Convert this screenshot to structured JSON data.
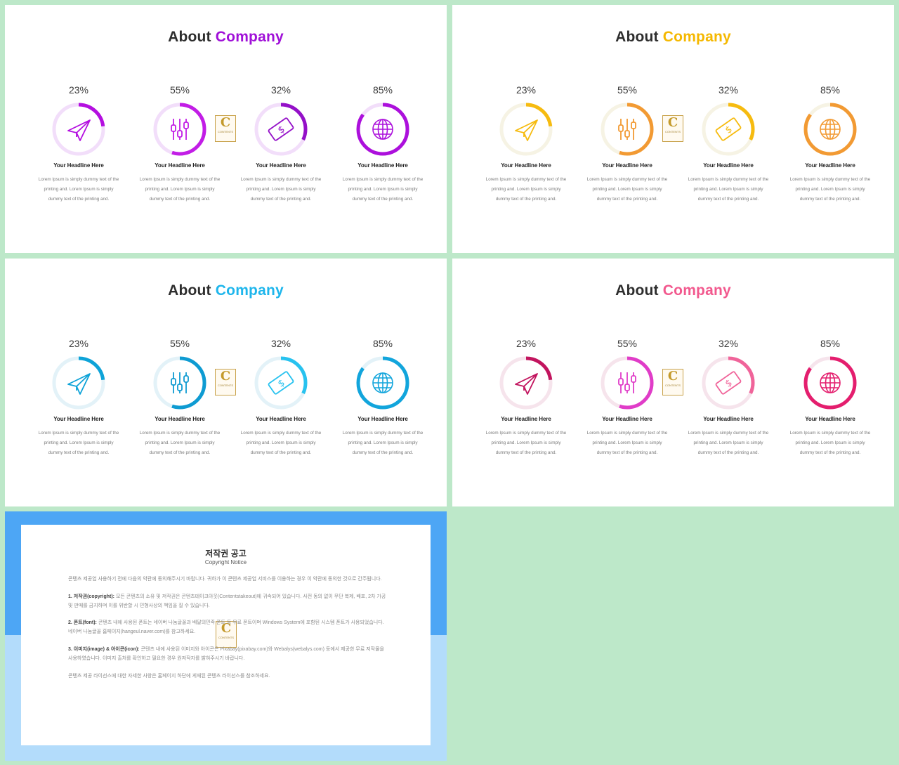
{
  "slides": [
    {
      "title_a": "About",
      "title_b": "Company",
      "accent": "#a010d8",
      "features": [
        {
          "percent": "23%",
          "value": 0.23,
          "icon": "paper-plane-icon",
          "color": "#b40fe0",
          "track": "#f2defa",
          "headline": "Your Headline Here"
        },
        {
          "percent": "55%",
          "value": 0.55,
          "icon": "sliders-icon",
          "color": "#c21de6",
          "track": "#f2defa",
          "headline": "Your Headline Here"
        },
        {
          "percent": "32%",
          "value": 0.32,
          "icon": "money-bill-icon",
          "color": "#9410c8",
          "track": "#f2defa",
          "headline": "Your Headline Here"
        },
        {
          "percent": "85%",
          "value": 0.85,
          "icon": "globe-icon",
          "color": "#ac10dc",
          "track": "#f2defa",
          "headline": "Your Headline Here"
        }
      ]
    },
    {
      "title_a": "About",
      "title_b": "Company",
      "accent": "#f5b800",
      "features": [
        {
          "percent": "23%",
          "value": 0.23,
          "icon": "paper-plane-icon",
          "color": "#f6bb10",
          "track": "#f6f3e4",
          "headline": "Your Headline Here"
        },
        {
          "percent": "55%",
          "value": 0.55,
          "icon": "sliders-icon",
          "color": "#f29a33",
          "track": "#f6f3e4",
          "headline": "Your Headline Here"
        },
        {
          "percent": "32%",
          "value": 0.32,
          "icon": "money-bill-icon",
          "color": "#f6bb10",
          "track": "#f6f3e4",
          "headline": "Your Headline Here"
        },
        {
          "percent": "85%",
          "value": 0.85,
          "icon": "globe-icon",
          "color": "#f29a33",
          "track": "#f6f3e4",
          "headline": "Your Headline Here"
        }
      ]
    },
    {
      "title_a": "About",
      "title_b": "Company",
      "accent": "#1eb6ec",
      "features": [
        {
          "percent": "23%",
          "value": 0.23,
          "icon": "paper-plane-icon",
          "color": "#0ea3d8",
          "track": "#e3f2f8",
          "headline": "Your Headline Here"
        },
        {
          "percent": "55%",
          "value": 0.55,
          "icon": "sliders-icon",
          "color": "#0e9bd2",
          "track": "#e3f2f8",
          "headline": "Your Headline Here"
        },
        {
          "percent": "32%",
          "value": 0.32,
          "icon": "money-bill-icon",
          "color": "#27c2ef",
          "track": "#e3f2f8",
          "headline": "Your Headline Here"
        },
        {
          "percent": "85%",
          "value": 0.85,
          "icon": "globe-icon",
          "color": "#12a5dc",
          "track": "#e3f2f8",
          "headline": "Your Headline Here"
        }
      ]
    },
    {
      "title_a": "About",
      "title_b": "Company",
      "accent": "#f2598e",
      "features": [
        {
          "percent": "23%",
          "value": 0.23,
          "icon": "paper-plane-icon",
          "color": "#c2145e",
          "track": "#f6e4ec",
          "headline": "Your Headline Here"
        },
        {
          "percent": "55%",
          "value": 0.55,
          "icon": "sliders-icon",
          "color": "#e03cc8",
          "track": "#f6e4ec",
          "headline": "Your Headline Here"
        },
        {
          "percent": "32%",
          "value": 0.32,
          "icon": "money-bill-icon",
          "color": "#f0649a",
          "track": "#f6e4ec",
          "headline": "Your Headline Here"
        },
        {
          "percent": "85%",
          "value": 0.85,
          "icon": "globe-icon",
          "color": "#e41e6e",
          "track": "#f6e4ec",
          "headline": "Your Headline Here"
        }
      ]
    }
  ],
  "description": "Lorem Ipsum is simply dummy text of the printing and. Lorem Ipsum is simply dummy text of the printing and.",
  "logo": {
    "letter": "C",
    "text": "CONTENTS"
  },
  "notice": {
    "title": "저작권 공고",
    "subtitle": "Copyright Notice",
    "intro": "콘텐츠 제공업 사용하기 전에 다음의 약관에 동의해주시기 바랍니다. 귀하가 이 콘텐츠 제공업 서비스를 이용하는 경우 이 약관에 동의한 것으로 간주됩니다.",
    "s1_head": "1. 저작권(copyright):",
    "s1_body": "모든 콘텐츠의 소유 및 저작권은 콘텐츠테이크아웃(Contentstakeout)에 귀속되어 있습니다. 사전 동의 없이 무단 복제, 배포, 2차 가공 및 판매를 금지하며 이를 위반할 시 민형사상의 책임을 질 수 있습니다.",
    "s2_head": "2. 폰트(font):",
    "s2_body": "콘텐츠 내에 사용된 폰트는 네이버 나눔글꼴과 배달의민족 폰트 등 무료 폰트이며 Windows System에 포함된 시스템 폰트가 사용되었습니다. 네이버 나눔글꼴 홈페이지(hangeul.naver.com)를 참고하세요.",
    "s3_head": "3. 이미지(image) & 아이콘(icon):",
    "s3_body": "콘텐츠 내에 사용된 이미지와 아이콘은 Pixabay(pixabay.com)와 Webalys(webalys.com) 등에서 제공한 무료 저작물을 사용하였습니다. 이미지 출처를 확인하고 필요한 경우 원저작자를 밝혀주시기 바랍니다.",
    "outro": "콘텐츠 제공 라이선스에 대한 자세한 사항은 홈페이지 하단에 게재된 콘텐츠 라이선스를 참조하세요."
  }
}
